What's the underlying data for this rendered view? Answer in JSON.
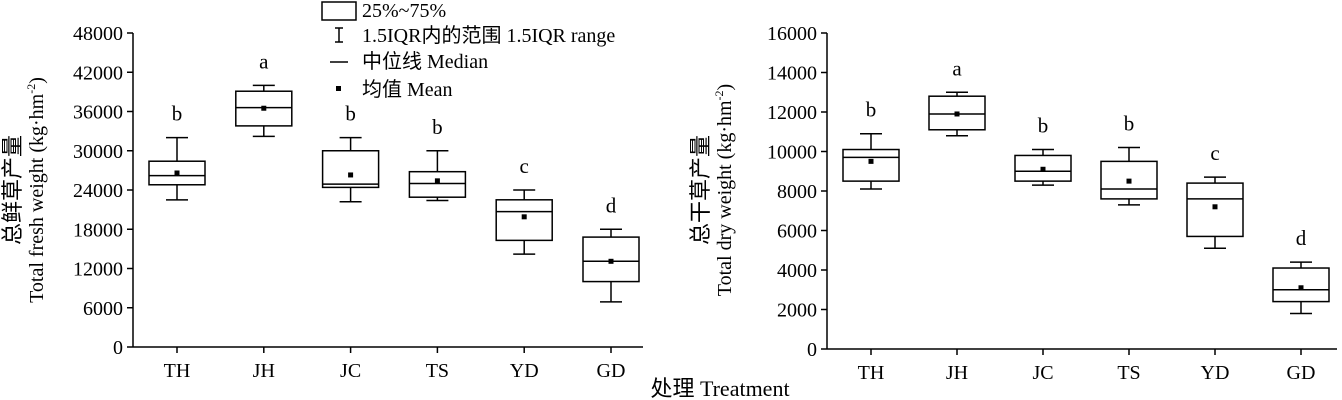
{
  "figure": {
    "x_axis_title": "处理 Treatment",
    "legend": {
      "box_label": "25%~75%",
      "whisker_label": "1.5IQR内的范围 1.5IQR range",
      "median_label": "中位线 Median",
      "mean_label": "均值 Mean"
    }
  },
  "chart_data": [
    {
      "type": "box",
      "ylabel_cn": "总鲜草产量",
      "ylabel_en": "Total fresh weight (kg·hm",
      "ylabel_sup": "-2",
      "ylabel_close": ")",
      "ylim": [
        0,
        48000
      ],
      "yticks": [
        0,
        6000,
        12000,
        18000,
        24000,
        30000,
        36000,
        42000,
        48000
      ],
      "categories": [
        "TH",
        "JH",
        "JC",
        "TS",
        "YD",
        "GD"
      ],
      "boxes": [
        {
          "whisker_low": 22500,
          "q1": 24800,
          "median": 26200,
          "q3": 28400,
          "whisker_high": 32000,
          "mean": 26600,
          "letter": "b"
        },
        {
          "whisker_low": 32200,
          "q1": 33800,
          "median": 36600,
          "q3": 39100,
          "whisker_high": 40000,
          "mean": 36500,
          "letter": "a"
        },
        {
          "whisker_low": 22200,
          "q1": 24400,
          "median": 24900,
          "q3": 30000,
          "whisker_high": 32000,
          "mean": 26300,
          "letter": "b"
        },
        {
          "whisker_low": 22400,
          "q1": 22900,
          "median": 25000,
          "q3": 26800,
          "whisker_high": 30000,
          "mean": 25400,
          "letter": "b"
        },
        {
          "whisker_low": 14200,
          "q1": 16300,
          "median": 20700,
          "q3": 22500,
          "whisker_high": 24000,
          "mean": 19900,
          "letter": "c"
        },
        {
          "whisker_low": 6900,
          "q1": 10000,
          "median": 13100,
          "q3": 16800,
          "whisker_high": 18000,
          "mean": 13100,
          "letter": "d"
        }
      ]
    },
    {
      "type": "box",
      "ylabel_cn": "总干草产量",
      "ylabel_en": "Total dry weight (kg·hm",
      "ylabel_sup": "-2",
      "ylabel_close": ")",
      "ylim": [
        0,
        16000
      ],
      "yticks": [
        0,
        2000,
        4000,
        6000,
        8000,
        10000,
        12000,
        14000,
        16000
      ],
      "categories": [
        "TH",
        "JH",
        "JC",
        "TS",
        "YD",
        "GD"
      ],
      "boxes": [
        {
          "whisker_low": 8100,
          "q1": 8500,
          "median": 9700,
          "q3": 10100,
          "whisker_high": 10900,
          "mean": 9500,
          "letter": "b"
        },
        {
          "whisker_low": 10800,
          "q1": 11100,
          "median": 11900,
          "q3": 12800,
          "whisker_high": 13000,
          "mean": 11900,
          "letter": "a"
        },
        {
          "whisker_low": 8300,
          "q1": 8500,
          "median": 9000,
          "q3": 9800,
          "whisker_high": 10100,
          "mean": 9100,
          "letter": "b"
        },
        {
          "whisker_low": 7300,
          "q1": 7600,
          "median": 8100,
          "q3": 9500,
          "whisker_high": 10200,
          "mean": 8500,
          "letter": "b"
        },
        {
          "whisker_low": 5100,
          "q1": 5700,
          "median": 7600,
          "q3": 8400,
          "whisker_high": 8700,
          "mean": 7200,
          "letter": "c"
        },
        {
          "whisker_low": 1800,
          "q1": 2400,
          "median": 3000,
          "q3": 4100,
          "whisker_high": 4400,
          "mean": 3100,
          "letter": "d"
        }
      ]
    }
  ]
}
